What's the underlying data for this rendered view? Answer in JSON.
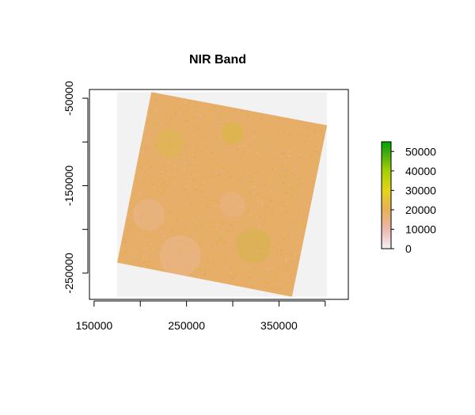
{
  "chart_data": {
    "type": "heatmap",
    "title": "NIR Band",
    "xlabel": "",
    "ylabel": "",
    "x_ticks": [
      150000,
      250000,
      350000
    ],
    "x_tick_labels": [
      "150000",
      "250000",
      "350000"
    ],
    "x_minor_ticks": [
      150000,
      200000,
      250000,
      300000,
      350000,
      400000
    ],
    "y_ticks": [
      -50000,
      -150000,
      -250000
    ],
    "y_tick_labels": [
      "-50000",
      "-150000",
      "-250000"
    ],
    "y_minor_ticks": [
      -50000,
      -100000,
      -150000,
      -200000,
      -250000
    ],
    "xlim": [
      145000,
      425000
    ],
    "ylim": [
      -280000,
      -40000
    ],
    "raster_extent": {
      "xmin": 175000,
      "xmax": 402000,
      "ymin": -277000,
      "ymax": -43000
    },
    "footprint_corners": [
      [
        212000,
        -43000
      ],
      [
        402000,
        -81000
      ],
      [
        364000,
        -277000
      ],
      [
        175000,
        -238000
      ]
    ],
    "grid": false,
    "colorbar": {
      "min": 0,
      "max": 55000,
      "ticks": [
        0,
        10000,
        20000,
        30000,
        40000,
        50000
      ],
      "tick_labels": [
        "0",
        "10000",
        "20000",
        "30000",
        "40000",
        "50000"
      ],
      "placement": "right",
      "stops": [
        {
          "value": 0,
          "color": "#f2f2f2"
        },
        {
          "value": 10000,
          "color": "#ecb7ad"
        },
        {
          "value": 20000,
          "color": "#e8b05a"
        },
        {
          "value": 30000,
          "color": "#e5d41a"
        },
        {
          "value": 40000,
          "color": "#a5d000"
        },
        {
          "value": 50000,
          "color": "#39a80f"
        },
        {
          "value": 55000,
          "color": "#00a600"
        }
      ]
    },
    "colors": {
      "na_background": "#f2f2f2",
      "footprint_fill": "#e7ae6a",
      "speckle_high": "#c9c21e",
      "speckle_low": "#ebb7a8"
    }
  }
}
